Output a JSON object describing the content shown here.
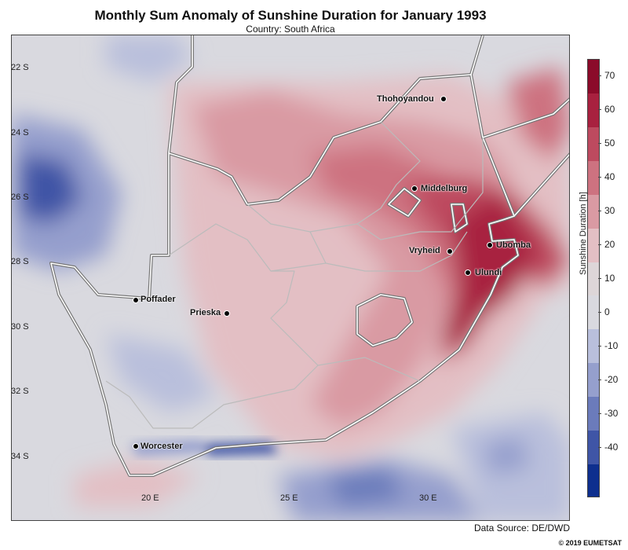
{
  "header": {
    "title": "Monthly Sum Anomaly of Sunshine Duration for January 1993",
    "subtitle": "Country: South Africa"
  },
  "colors": {
    "ocean_neutral": "#d9d9df",
    "border_line": "#ffffff",
    "border_outline": "#777777"
  },
  "axes": {
    "lat_ticks": [
      "22 S",
      "24 S",
      "26 S",
      "28 S",
      "30 S",
      "32 S",
      "34 S"
    ],
    "lon_ticks": [
      "20 E",
      "25 E",
      "30 E"
    ]
  },
  "cities": [
    {
      "name": "Thohoyandou"
    },
    {
      "name": "Middelburg"
    },
    {
      "name": "Vryheid"
    },
    {
      "name": "Ubomba"
    },
    {
      "name": "Ulundi"
    },
    {
      "name": "Poffader"
    },
    {
      "name": "Prieska"
    },
    {
      "name": "Worcester"
    }
  ],
  "colorbar": {
    "title": "Sunshine Duration [h]",
    "ticks": [
      "70",
      "60",
      "50",
      "40",
      "30",
      "20",
      "10",
      "0",
      "-10",
      "-20",
      "-30",
      "-40"
    ],
    "colors": [
      "#8b0b2a",
      "#a8213f",
      "#bd4a5f",
      "#cd7280",
      "#d99aa3",
      "#e3bfc4",
      "#ddd6d8",
      "#d9d9df",
      "#b9bfdc",
      "#959fcd",
      "#6b7bbb",
      "#3f55a6",
      "#0e2f8e"
    ]
  },
  "footer": {
    "source": "Data Source: DE/DWD",
    "copyright": "© 2019 EUMETSAT"
  }
}
